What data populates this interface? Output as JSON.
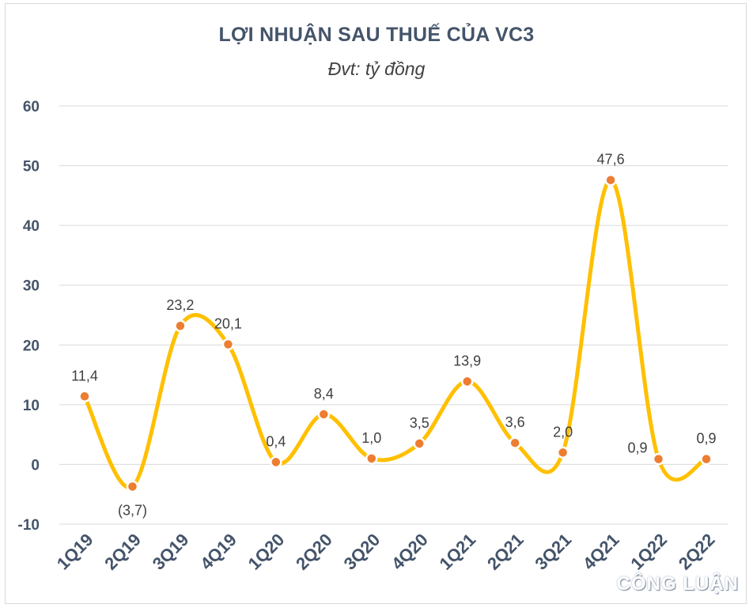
{
  "chart_data": {
    "type": "line",
    "title": "LỢI NHUẬN SAU THUẾ CỦA VC3",
    "subtitle": "Đvt: tỷ đồng",
    "categories": [
      "1Q19",
      "2Q19",
      "3Q19",
      "4Q19",
      "1Q20",
      "2Q20",
      "3Q20",
      "4Q20",
      "1Q21",
      "2Q21",
      "3Q21",
      "4Q21",
      "1Q22",
      "2Q22"
    ],
    "values": [
      11.4,
      -3.7,
      23.2,
      20.1,
      0.4,
      8.4,
      1.0,
      3.5,
      13.9,
      3.6,
      2.0,
      47.6,
      0.9,
      0.9
    ],
    "data_labels": [
      "11,4",
      "(3,7)",
      "23,2",
      "20,1",
      "0,4",
      "8,4",
      "1,0",
      "3,5",
      "13,9",
      "3,6",
      "2,0",
      "47,6",
      "0,9",
      "0,9"
    ],
    "label_side": [
      "above",
      "below",
      "above",
      "above",
      "above",
      "above",
      "above",
      "above",
      "above",
      "above",
      "above",
      "above",
      "left",
      "above"
    ],
    "ylim": [
      -10,
      60
    ],
    "yticks": [
      -10,
      0,
      10,
      20,
      30,
      40,
      50,
      60
    ],
    "grid": true,
    "line_color": "#ffc000",
    "marker_color": "#ed7d31",
    "grid_color": "#d9d9d9",
    "axis_text_color": "#44546a",
    "xlabel": "",
    "ylabel": ""
  },
  "watermark": "CÔNG LUẬN"
}
